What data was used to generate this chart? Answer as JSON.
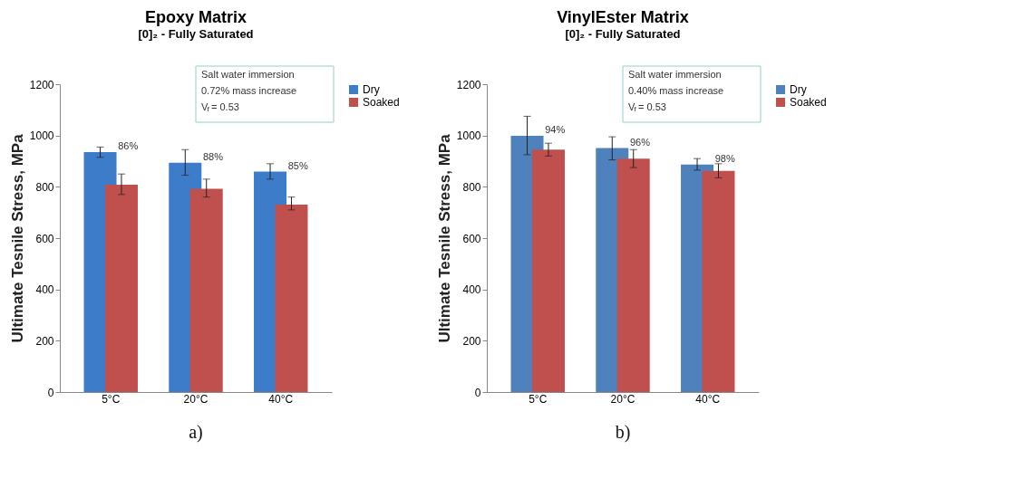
{
  "chart_data": [
    {
      "type": "bar",
      "title": "Epoxy Matrix",
      "subtitle": "[0]₂ - Fully Saturated",
      "ylabel": "Ultimate Tesnile Stress, MPa",
      "categories": [
        "5°C",
        "20°C",
        "40°C"
      ],
      "series": [
        {
          "name": "Dry",
          "color": "#3d7cc9",
          "values": [
            935,
            894,
            859
          ],
          "errors": [
            [
              915,
              955
            ],
            [
              845,
              945
            ],
            [
              830,
              890
            ]
          ]
        },
        {
          "name": "Soaked",
          "color": "#c0504d",
          "values": [
            808,
            792,
            731
          ],
          "errors": [
            [
              770,
              850
            ],
            [
              760,
              830
            ],
            [
              710,
              760
            ]
          ]
        }
      ],
      "ylim": [
        0,
        1200
      ],
      "yticks": [
        0,
        200,
        400,
        600,
        800,
        1000,
        1200
      ],
      "legend": "right",
      "annotations": [
        "86%",
        "88%",
        "85%",
        "Salt water immersion",
        "0.72% mass increase",
        "V$_{f}$ = 0.53",
        "a)"
      ]
    },
    {
      "type": "bar",
      "title": "VinylEster Matrix",
      "subtitle": "[0]₂ - Fully Saturated",
      "ylabel": "Ultimate Tesnile Stress, MPa",
      "categories": [
        "5°C",
        "20°C",
        "40°C"
      ],
      "series": [
        {
          "name": "Dry",
          "color": "#4f81bd",
          "values": [
            999,
            951,
            887
          ],
          "errors": [
            [
              925,
              1075
            ],
            [
              905,
              995
            ],
            [
              865,
              910
            ]
          ]
        },
        {
          "name": "Soaked",
          "color": "#c0504d",
          "values": [
            945,
            910,
            862
          ],
          "errors": [
            [
              920,
              970
            ],
            [
              875,
              945
            ],
            [
              835,
              890
            ]
          ]
        }
      ],
      "ylim": [
        0,
        1200
      ],
      "yticks": [
        0,
        200,
        400,
        600,
        800,
        1000,
        1200
      ],
      "legend": "right",
      "annotations": [
        "94%",
        "96%",
        "98%",
        "Salt water immersion",
        "0.40% mass increase",
        "V$_{f}$ = 0.53",
        "b)"
      ]
    }
  ]
}
